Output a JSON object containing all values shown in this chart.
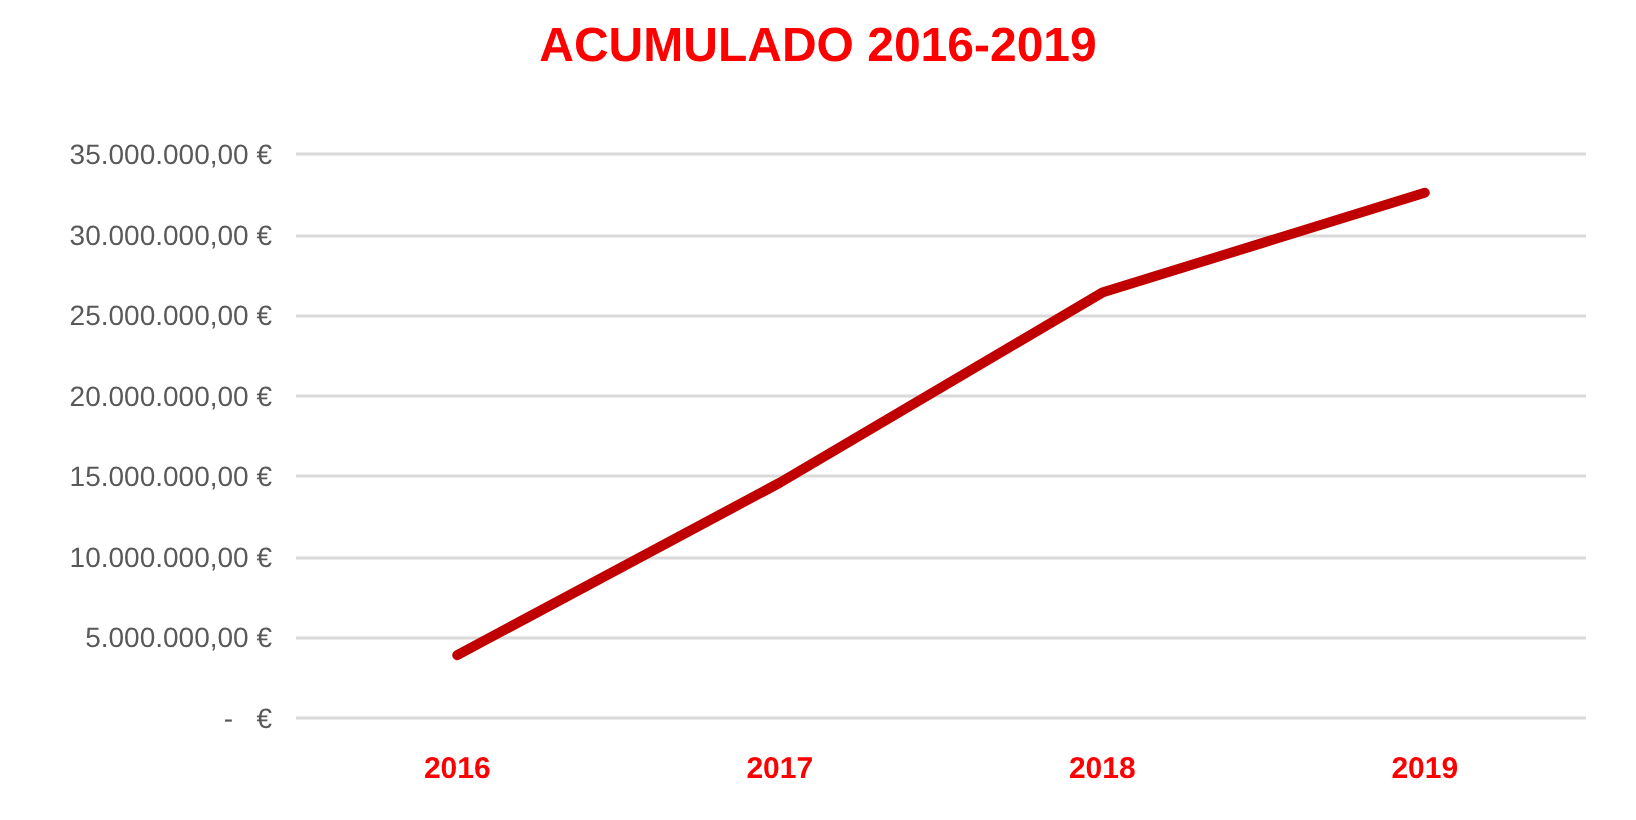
{
  "chart_data": {
    "type": "line",
    "title": "ACUMULADO 2016-2019",
    "categories": [
      "2016",
      "2017",
      "2018",
      "2019"
    ],
    "series": [
      {
        "color": "#c00000",
        "values": [
          3900000,
          14600000,
          26400000,
          32600000
        ]
      }
    ],
    "ylim": [
      0,
      35000000
    ],
    "yticks": [
      {
        "value": 0,
        "label": "-   €"
      },
      {
        "value": 5000000,
        "label": "5.000.000,00 €"
      },
      {
        "value": 10000000,
        "label": "10.000.000,00 €"
      },
      {
        "value": 15000000,
        "label": "15.000.000,00 €"
      },
      {
        "value": 20000000,
        "label": "20.000.000,00 €"
      },
      {
        "value": 25000000,
        "label": "25.000.000,00 €"
      },
      {
        "value": 30000000,
        "label": "30.000.000,00 €"
      },
      {
        "value": 35000000,
        "label": "35.000.000,00 €"
      }
    ],
    "grid": "y",
    "marker": "none",
    "line_style": "solid"
  }
}
